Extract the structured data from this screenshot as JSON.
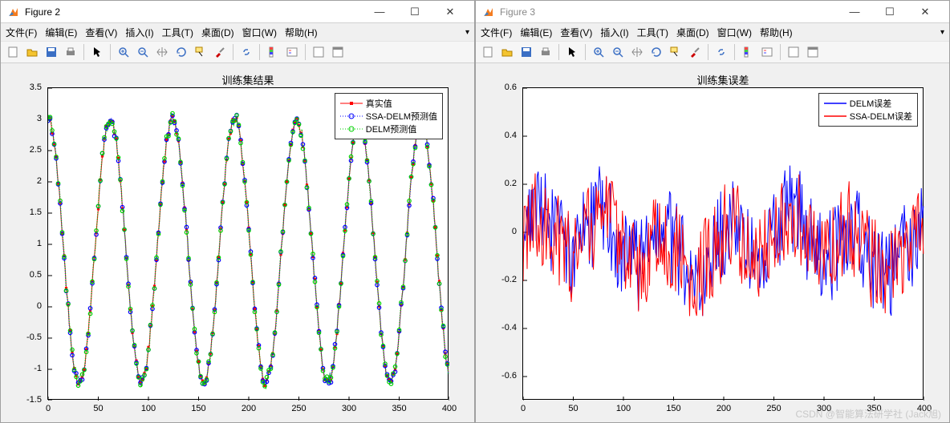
{
  "figure2": {
    "title": "Figure 2",
    "menu": [
      "文件(F)",
      "编辑(E)",
      "查看(V)",
      "插入(I)",
      "工具(T)",
      "桌面(D)",
      "窗口(W)",
      "帮助(H)"
    ],
    "chart": {
      "type": "line",
      "title": "训练集结果",
      "title_fontsize": 13,
      "xlim": [
        0,
        400
      ],
      "ylim": [
        -1.5,
        3.5
      ],
      "xticks": [
        0,
        50,
        100,
        150,
        200,
        250,
        300,
        350,
        400
      ],
      "yticks": [
        -1.5,
        -1,
        -0.5,
        0,
        0.5,
        1,
        1.5,
        2,
        2.5,
        3,
        3.5
      ],
      "background_color": "#ffffff",
      "axes_color": "#000000",
      "n_points": 400,
      "series": [
        {
          "label": "真实值",
          "color": "#ff0000",
          "marker": "square",
          "linewidth": 1
        },
        {
          "label": "SSA-DELM预测值",
          "color": "#0000ff",
          "marker": "circle",
          "linewidth": 1,
          "linestyle": "dotted"
        },
        {
          "label": "DELM预测值",
          "color": "#00d000",
          "marker": "circle",
          "linewidth": 1.5,
          "linestyle": "dotted"
        }
      ],
      "waveform": {
        "period": 62,
        "amp_low": -1.2,
        "amp_high": 3.0,
        "noise": 0.05
      }
    }
  },
  "figure3": {
    "title": "Figure 3",
    "menu": [
      "文件(F)",
      "编辑(E)",
      "查看(V)",
      "插入(I)",
      "工具(T)",
      "桌面(D)",
      "窗口(W)",
      "帮助(H)"
    ],
    "chart": {
      "type": "line",
      "title": "训练集误差",
      "title_fontsize": 13,
      "xlim": [
        0,
        400
      ],
      "ylim": [
        -0.7,
        0.6
      ],
      "xticks": [
        0,
        50,
        100,
        150,
        200,
        250,
        300,
        350,
        400
      ],
      "yticks": [
        -0.6,
        -0.4,
        -0.2,
        0,
        0.2,
        0.4,
        0.6
      ],
      "background_color": "#ffffff",
      "axes_color": "#000000",
      "n_points": 400,
      "series": [
        {
          "label": "DELM误差",
          "color": "#0000ff",
          "linewidth": 1
        },
        {
          "label": "SSA-DELM误差",
          "color": "#ff0000",
          "linewidth": 1
        }
      ],
      "noise": {
        "mean": -0.05,
        "std": 0.2,
        "min": -0.68,
        "max": 0.55
      }
    }
  },
  "watermark": "CSDN @智能算法研学社 (Jack旭)",
  "colors": {
    "titlebar_bg": "#ffffff",
    "menubar_bg": "#f0f0f0",
    "toolbar_bg": "#f6f6f6",
    "plot_bg": "#f0f0f0"
  }
}
